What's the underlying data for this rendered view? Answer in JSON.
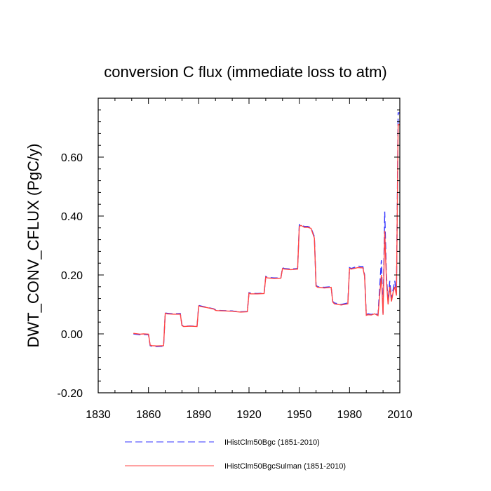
{
  "chart_data": {
    "type": "line",
    "title": "conversion C flux (immediate loss to atm)",
    "xlabel": "",
    "ylabel": "DWT_CONV_CFLUX  (PgC/y)",
    "xlim": [
      1830,
      2010
    ],
    "ylim": [
      -0.2,
      0.8
    ],
    "xticks": [
      1830,
      1860,
      1890,
      1920,
      1950,
      1980,
      2010
    ],
    "xtick_labels": [
      "1830",
      "1860",
      "1890",
      "1920",
      "1950",
      "1980",
      "2010"
    ],
    "yticks": [
      -0.2,
      0.0,
      0.2,
      0.4,
      0.6
    ],
    "ytick_labels": [
      "-0.20",
      "0.00",
      "0.20",
      "0.40",
      "0.60"
    ],
    "grid": false,
    "legend": "bottom",
    "series": [
      {
        "name": "IHistClm50Bgc (1851-2010)",
        "color": "#3333ff",
        "dash": "dashed",
        "x": [
          1851,
          1855,
          1857,
          1860,
          1861,
          1862,
          1865,
          1869,
          1870,
          1871,
          1875,
          1879,
          1880,
          1881,
          1885,
          1889,
          1890,
          1891,
          1895,
          1899,
          1900,
          1901,
          1905,
          1909,
          1910,
          1911,
          1915,
          1919,
          1920,
          1921,
          1925,
          1929,
          1930,
          1931,
          1935,
          1939,
          1940,
          1941,
          1945,
          1949,
          1950,
          1951,
          1953,
          1955,
          1957,
          1959,
          1960,
          1961,
          1965,
          1969,
          1970,
          1971,
          1975,
          1979,
          1980,
          1981,
          1985,
          1988,
          1989,
          1990,
          1991,
          1993,
          1995,
          1997,
          1999,
          2000,
          2001,
          2002,
          2003,
          2004,
          2005,
          2006,
          2007,
          2008,
          2009,
          2010
        ],
        "values": [
          0.0,
          -0.003,
          -0.002,
          -0.003,
          -0.04,
          -0.042,
          -0.043,
          -0.042,
          0.072,
          0.07,
          0.068,
          0.069,
          0.03,
          0.026,
          0.027,
          0.026,
          0.097,
          0.095,
          0.09,
          0.085,
          0.082,
          0.08,
          0.079,
          0.078,
          0.078,
          0.077,
          0.075,
          0.076,
          0.14,
          0.138,
          0.137,
          0.138,
          0.195,
          0.192,
          0.19,
          0.19,
          0.225,
          0.222,
          0.22,
          0.222,
          0.37,
          0.372,
          0.365,
          0.365,
          0.36,
          0.33,
          0.165,
          0.16,
          0.158,
          0.16,
          0.11,
          0.105,
          0.1,
          0.105,
          0.225,
          0.222,
          0.23,
          0.228,
          0.2,
          0.065,
          0.068,
          0.066,
          0.07,
          0.065,
          0.25,
          0.07,
          0.415,
          0.2,
          0.11,
          0.18,
          0.12,
          0.15,
          0.18,
          0.14,
          0.75,
          0.75
        ]
      },
      {
        "name": "IHistClm50BgcSulman (1851-2010)",
        "color": "#ff4444",
        "dash": "solid",
        "x": [
          1851,
          1855,
          1857,
          1860,
          1861,
          1862,
          1865,
          1869,
          1870,
          1871,
          1875,
          1879,
          1880,
          1881,
          1885,
          1889,
          1890,
          1891,
          1895,
          1899,
          1900,
          1901,
          1905,
          1909,
          1910,
          1911,
          1915,
          1919,
          1920,
          1921,
          1925,
          1929,
          1930,
          1931,
          1935,
          1939,
          1940,
          1941,
          1945,
          1949,
          1950,
          1951,
          1953,
          1955,
          1957,
          1959,
          1960,
          1961,
          1965,
          1969,
          1970,
          1971,
          1975,
          1979,
          1980,
          1981,
          1985,
          1988,
          1989,
          1990,
          1991,
          1993,
          1995,
          1997,
          1999,
          2000,
          2001,
          2002,
          2003,
          2004,
          2005,
          2006,
          2007,
          2008,
          2009,
          2010
        ],
        "values": [
          0.002,
          -0.001,
          0.0,
          -0.001,
          -0.038,
          -0.04,
          -0.041,
          -0.04,
          0.07,
          0.068,
          0.067,
          0.067,
          0.028,
          0.025,
          0.026,
          0.025,
          0.095,
          0.093,
          0.089,
          0.084,
          0.08,
          0.079,
          0.078,
          0.077,
          0.077,
          0.076,
          0.074,
          0.075,
          0.138,
          0.136,
          0.136,
          0.137,
          0.193,
          0.19,
          0.188,
          0.189,
          0.222,
          0.22,
          0.218,
          0.22,
          0.365,
          0.368,
          0.362,
          0.362,
          0.358,
          0.325,
          0.162,
          0.158,
          0.156,
          0.158,
          0.108,
          0.102,
          0.098,
          0.102,
          0.222,
          0.22,
          0.225,
          0.224,
          0.195,
          0.063,
          0.065,
          0.064,
          0.068,
          0.062,
          0.2,
          0.065,
          0.35,
          0.18,
          0.1,
          0.16,
          0.11,
          0.14,
          0.16,
          0.13,
          0.71,
          0.71
        ]
      }
    ]
  }
}
